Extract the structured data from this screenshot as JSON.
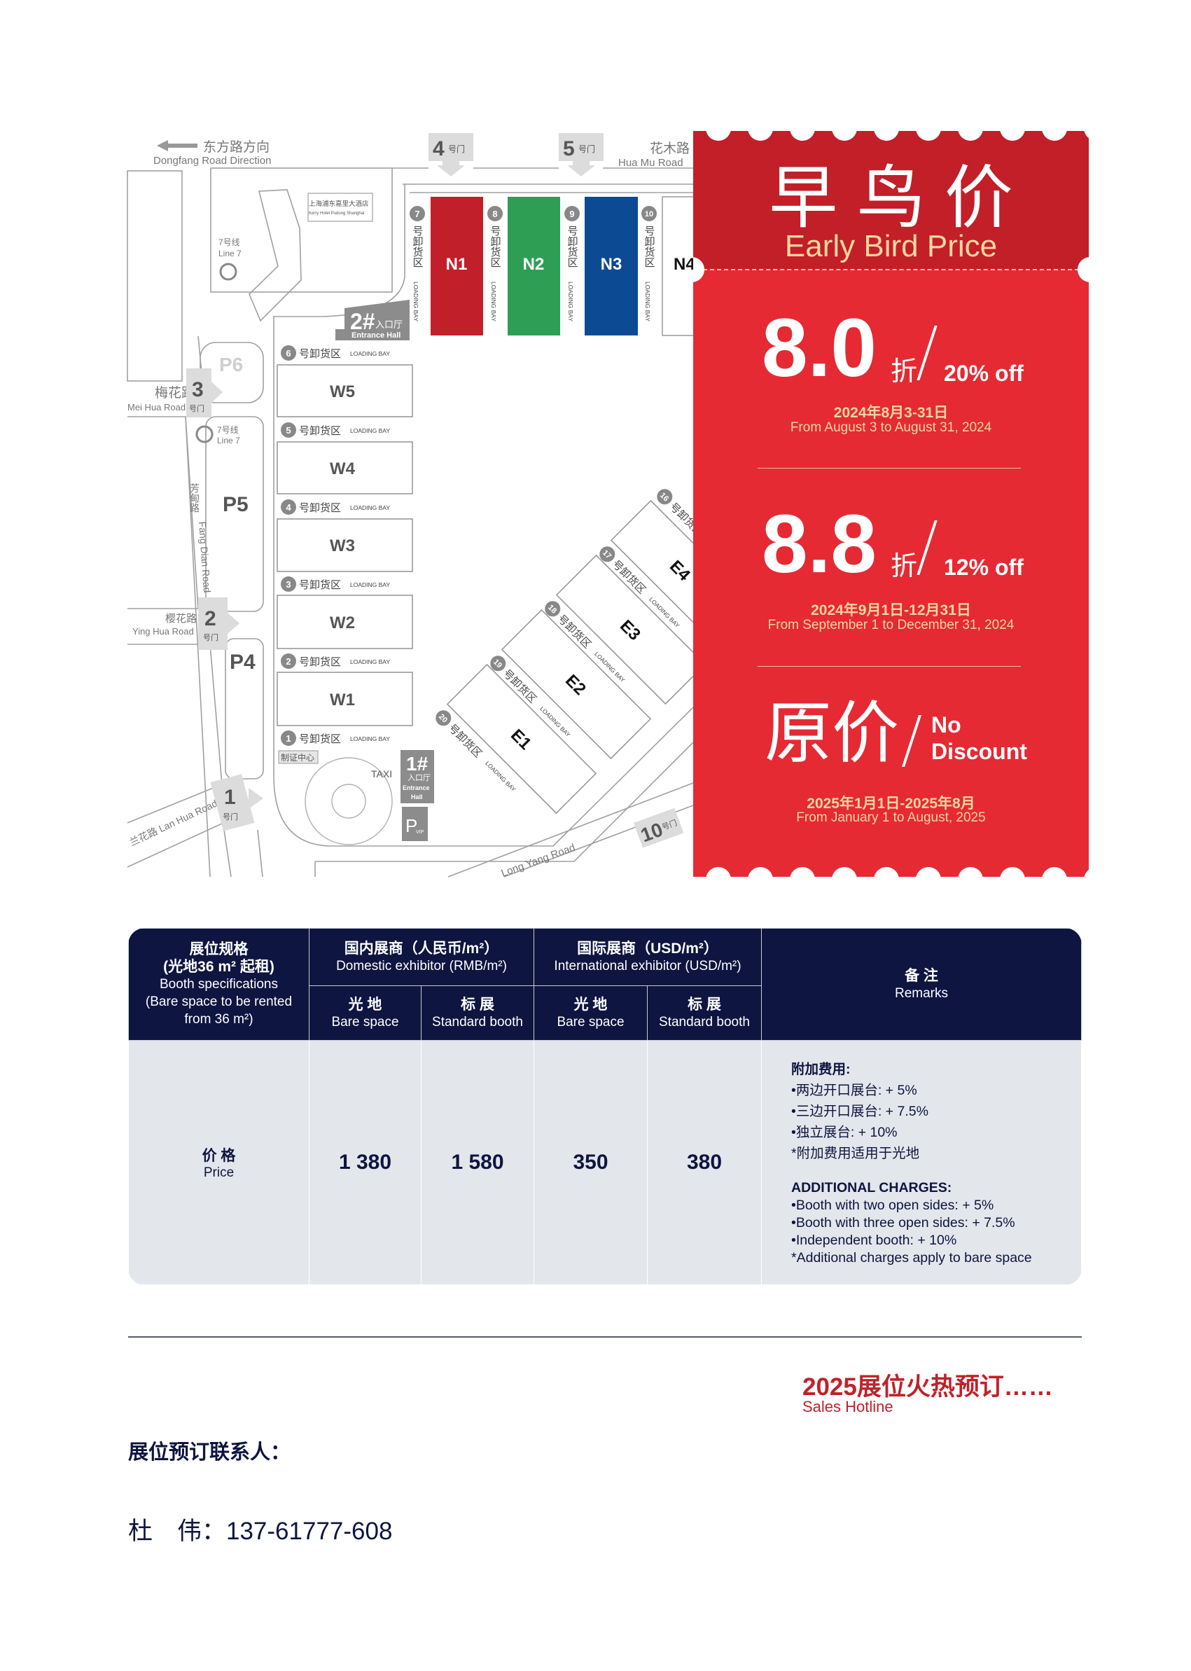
{
  "map": {
    "direction": {
      "zh": "东方路方向",
      "en": "Dongfang Road Direction"
    },
    "roads": {
      "huamu": {
        "zh": "花木路",
        "en": "Hua Mu Road"
      },
      "meihua": {
        "zh": "梅花路",
        "en": "Mei Hua Road"
      },
      "yinghua": {
        "zh": "樱花路",
        "en": "Ying Hua Road"
      },
      "fangdian": {
        "zh": "芳甸路",
        "en": "Fang Dian Road"
      },
      "lanhua": "兰花路 Lan Hua Road",
      "longyang": "Long Yang Road"
    },
    "hotel": {
      "zh": "上海浦东嘉里大酒店",
      "en": "Kerry Hotel Pudong Shanghai"
    },
    "metro": {
      "zh": "7号线",
      "en": "Line 7"
    },
    "gate_suffix": "号门",
    "gates": {
      "g1": "1",
      "g2": "2",
      "g3": "3",
      "g4": "4",
      "g5": "5",
      "g10": "10"
    },
    "entrance_halls": [
      {
        "num": "2#",
        "zh": "入口厅",
        "en": "Entrance Hall"
      },
      {
        "num": "1#",
        "zh": "入口厅",
        "en": "Entrance",
        "en2": "Hall"
      }
    ],
    "parking": {
      "p6": "P6",
      "p5": "P5",
      "p4": "P4",
      "pvip": "P",
      "vip": "VIP"
    },
    "halls": {
      "n1": "N1",
      "n2": "N2",
      "n3": "N3",
      "n4": "N4",
      "w1": "W1",
      "w2": "W2",
      "w3": "W3",
      "w4": "W4",
      "w5": "W5",
      "e1": "E1",
      "e2": "E2",
      "e3": "E3",
      "e4": "E4"
    },
    "hall_colors": {
      "n1": "#c1202a",
      "n2": "#2f9e55",
      "n3": "#0d4a94"
    },
    "loading_bay": {
      "zh": "号卸货区",
      "en": "LOADING BAY"
    },
    "bays": {
      "b1": "1",
      "b2": "2",
      "b3": "3",
      "b4": "4",
      "b5": "5",
      "b6": "6",
      "b7": "7",
      "b8": "8",
      "b9": "9",
      "b10": "10",
      "b16": "16",
      "b17": "17",
      "b18": "18",
      "b19": "19",
      "b20": "20"
    },
    "cert_center": "制证中心",
    "taxi": "TAXI"
  },
  "promo": {
    "title_zh": "早 鸟 价",
    "title_en": "Early Bird Price",
    "tiers": [
      {
        "discount": "8.0",
        "unit": "折",
        "off": "20% off",
        "date_zh": "2024年8月3-31日",
        "date_en": "From August 3 to August 31, 2024"
      },
      {
        "discount": "8.8",
        "unit": "折",
        "off": "12% off",
        "date_zh": "2024年9月1日-12月31日",
        "date_en": "From September 1 to December 31, 2024"
      },
      {
        "discount": "原价",
        "off_line1": "No",
        "off_line2": "Discount",
        "date_zh": "2025年1月1日-2025年8月",
        "date_en": "From January 1 to August, 2025"
      }
    ],
    "colors": {
      "band": "#c21f28",
      "body": "#e52a33",
      "gold": "#f7d7a0"
    }
  },
  "table": {
    "spec_header": {
      "zh1": "展位规格",
      "zh2": "(光地36 m² 起租)",
      "en1": "Booth specifications",
      "en2": "(Bare space to be rented",
      "en3": "from 36 m²)"
    },
    "domestic": {
      "zh": "国内展商（人民币/m²）",
      "en": "Domestic exhibitor (RMB/m²)"
    },
    "international": {
      "zh": "国际展商（USD/m²）",
      "en": "International exhibitor (USD/m²)"
    },
    "remarks_header": {
      "zh": "备 注",
      "en": "Remarks"
    },
    "sub": {
      "bare": {
        "zh": "光 地",
        "en": "Bare space"
      },
      "standard": {
        "zh": "标 展",
        "en": "Standard booth"
      }
    },
    "row": {
      "label_zh": "价 格",
      "label_en": "Price",
      "domestic_bare": "1 380",
      "domestic_standard": "1 580",
      "intl_bare": "350",
      "intl_standard": "380"
    },
    "remarks": {
      "zh_title": "附加费用:",
      "zh_items": [
        "•两边开口展台: + 5%",
        "•三边开口展台: + 7.5%",
        "•独立展台: + 10%",
        "*附加费用适用于光地"
      ],
      "en_title": "ADDITIONAL CHARGES:",
      "en_items": [
        "•Booth with two open sides: + 5%",
        "•Booth with three open sides: + 7.5%",
        "•Independent booth: + 10%",
        "*Additional charges apply to bare space"
      ]
    },
    "colors": {
      "header": "#0e1540",
      "body": "#e3e6eb"
    }
  },
  "footer": {
    "hotline_title": "2025展位火热预订……",
    "hotline_en": "Sales Hotline",
    "contact_label": "展位预订联系人：",
    "contact": "杜　伟：137-61777-608"
  }
}
